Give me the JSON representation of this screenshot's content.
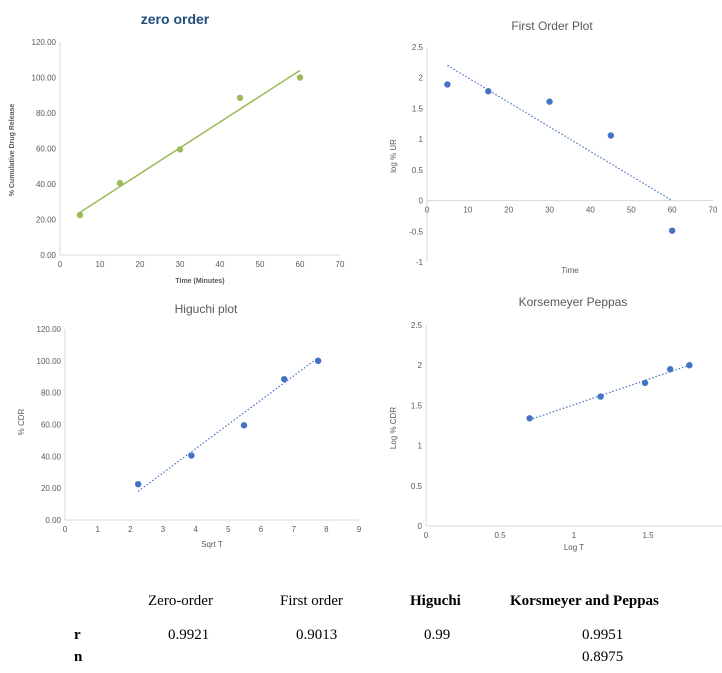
{
  "chart_data": [
    {
      "type": "scatter",
      "title": "zero order",
      "xlabel": "Time (Minutes)",
      "ylabel": "% Cumulative Drug Release",
      "xlim": [
        0,
        70
      ],
      "ylim": [
        0,
        120
      ],
      "x_ticks": [
        "0",
        "10",
        "20",
        "30",
        "40",
        "50",
        "60",
        "70"
      ],
      "y_ticks": [
        "0.00",
        "20.00",
        "40.00",
        "60.00",
        "80.00",
        "100.00",
        "120.00"
      ],
      "trendline": "solid",
      "colors": {
        "marker": "#9bbb59",
        "line": "#9bbb59"
      },
      "series": [
        {
          "x": [
            5,
            15,
            30,
            45,
            60
          ],
          "y": [
            22.5,
            40.5,
            59.5,
            88.5,
            100
          ]
        }
      ],
      "fit": {
        "x": [
          5,
          60
        ],
        "y": [
          24,
          104
        ]
      }
    },
    {
      "type": "scatter",
      "title": "First Order Plot",
      "xlabel": "Time",
      "ylabel": "log % UR",
      "xlim": [
        0,
        70
      ],
      "ylim": [
        -1,
        2.5
      ],
      "x_ticks": [
        "0",
        "10",
        "20",
        "30",
        "40",
        "50",
        "60",
        "70"
      ],
      "y_ticks": [
        "-1",
        "-0.5",
        "0",
        "0.5",
        "1",
        "1.5",
        "2",
        "2.5"
      ],
      "trendline": "dotted",
      "colors": {
        "marker": "#4472c4",
        "line": "#4472c4"
      },
      "series": [
        {
          "x": [
            5,
            15,
            30,
            45,
            60
          ],
          "y": [
            1.89,
            1.78,
            1.61,
            1.06,
            -0.49
          ]
        }
      ],
      "fit": {
        "x": [
          5,
          60
        ],
        "y": [
          2.2,
          0
        ]
      }
    },
    {
      "type": "scatter",
      "title": "Higuchi plot",
      "xlabel": "Sqrt T",
      "ylabel": "% CDR",
      "xlim": [
        0,
        9
      ],
      "ylim": [
        0,
        120
      ],
      "x_ticks": [
        "0",
        "1",
        "2",
        "3",
        "4",
        "5",
        "6",
        "7",
        "8",
        "9"
      ],
      "y_ticks": [
        "0.00",
        "20.00",
        "40.00",
        "60.00",
        "80.00",
        "100.00",
        "120.00"
      ],
      "trendline": "dotted",
      "colors": {
        "marker": "#4472c4",
        "line": "#4472c4"
      },
      "series": [
        {
          "x": [
            2.24,
            3.87,
            5.48,
            6.71,
            7.75
          ],
          "y": [
            22.5,
            40.5,
            59.5,
            88.5,
            100
          ]
        }
      ],
      "fit": {
        "x": [
          2.24,
          7.75
        ],
        "y": [
          18,
          102
        ]
      }
    },
    {
      "type": "scatter",
      "title": "Korsemeyer Peppas",
      "xlabel": "Log T",
      "ylabel": "Log % CDR",
      "xlim": [
        0,
        2
      ],
      "ylim": [
        0,
        2.5
      ],
      "x_ticks": [
        "0",
        "0.5",
        "1",
        "1.5"
      ],
      "y_ticks": [
        "0",
        "0.5",
        "1",
        "1.5",
        "2",
        "2.5"
      ],
      "trendline": "dotted",
      "colors": {
        "marker": "#4472c4",
        "line": "#4472c4"
      },
      "series": [
        {
          "x": [
            0.7,
            1.18,
            1.48,
            1.65,
            1.78
          ],
          "y": [
            1.34,
            1.61,
            1.78,
            1.95,
            2.0
          ]
        }
      ],
      "fit": {
        "x": [
          0.7,
          1.78
        ],
        "y": [
          1.32,
          2.0
        ]
      }
    }
  ],
  "results_table": {
    "headers": [
      "Zero-order",
      "First order",
      "Higuchi",
      "Korsmeyer and Peppas"
    ],
    "rows": [
      {
        "label": "r",
        "values": [
          "0.9921",
          "0.9013",
          "0.99",
          "0.9951"
        ]
      },
      {
        "label": "n",
        "values": [
          "",
          "",
          "",
          "0.8975"
        ]
      }
    ]
  }
}
